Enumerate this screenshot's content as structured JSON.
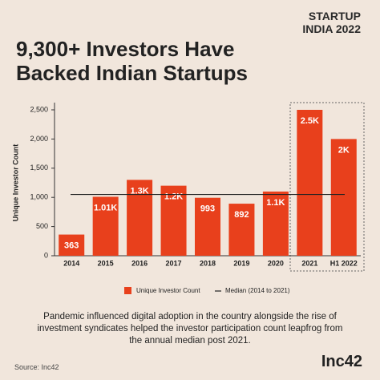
{
  "brand": {
    "line1": "STARTUP",
    "line2": "INDIA 2022"
  },
  "chart_data": {
    "type": "bar",
    "title": "9,300+ Investors Have Backed Indian Startups",
    "y_label": "Unique Investor Count",
    "categories": [
      "2014",
      "2015",
      "2016",
      "2017",
      "2018",
      "2019",
      "2020",
      "2021",
      "H1 2022"
    ],
    "series": [
      {
        "name": "Unique Investor Count",
        "color": "#e8401c",
        "values": [
          363,
          1010,
          1300,
          1200,
          993,
          892,
          1100,
          2500,
          2000
        ],
        "value_labels": [
          "363",
          "1.01K",
          "1.3K",
          "1.2K",
          "993",
          "892",
          "1.1K",
          "2.5K",
          "2K"
        ]
      }
    ],
    "median": {
      "name": "Median (2014 to 2021)",
      "value": 1050
    },
    "ylim": [
      0,
      2500
    ],
    "yticks": [
      0,
      500,
      {
        "value": 1000,
        "label": "1,000"
      },
      {
        "value": 1500,
        "label": "1,500"
      },
      {
        "value": 2000,
        "label": "2,000"
      },
      {
        "value": 2500,
        "label": "2,500"
      }
    ]
  },
  "caption": "Pandemic influenced digital adoption in the country alongside the rise of investment syndicates helped the investor participation count leapfrog from the annual median post 2021.",
  "source": "Source: Inc42",
  "logo": "Inc42"
}
